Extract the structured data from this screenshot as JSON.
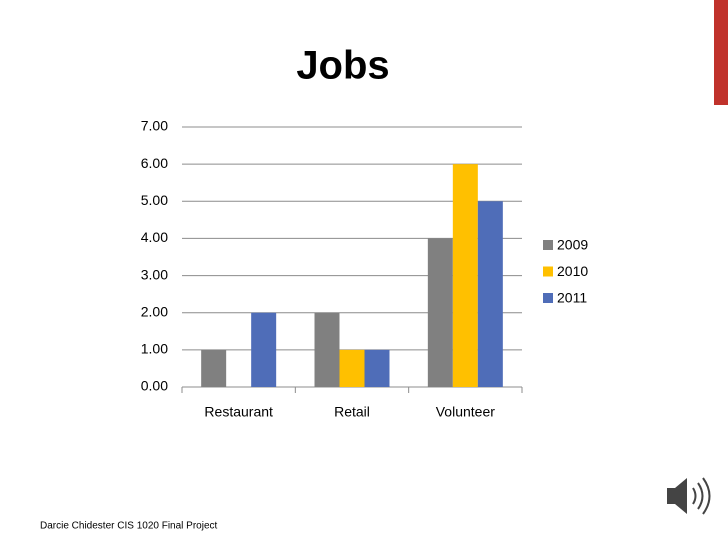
{
  "chart_data": {
    "type": "bar",
    "title": "Jobs",
    "categories": [
      "Restaurant",
      "Retail",
      "Volunteer"
    ],
    "series": [
      {
        "name": "2009",
        "color": "#808080",
        "values": [
          1,
          2,
          4
        ]
      },
      {
        "name": "2010",
        "color": "#ffc000",
        "values": [
          0,
          1,
          6
        ]
      },
      {
        "name": "2011",
        "color": "#4f6db8",
        "values": [
          2,
          1,
          5
        ]
      }
    ],
    "ylim": [
      0,
      7
    ],
    "yticks": [
      {
        "value": 0,
        "label": "0.00"
      },
      {
        "value": 1,
        "label": "1.00"
      },
      {
        "value": 2,
        "label": "2.00"
      },
      {
        "value": 3,
        "label": "3.00"
      },
      {
        "value": 4,
        "label": "4.00"
      },
      {
        "value": 5,
        "label": "5.00"
      },
      {
        "value": 6,
        "label": "6.00"
      },
      {
        "value": 7,
        "label": "7.00"
      }
    ],
    "grid": true,
    "legend": "right"
  },
  "footer": "Darcie Chidester  CIS 1020 Final Project"
}
